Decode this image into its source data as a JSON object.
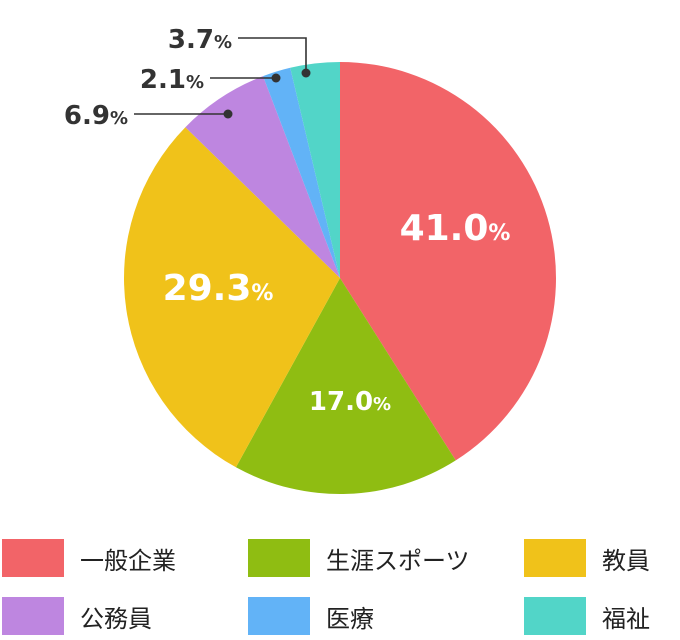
{
  "chart_data": {
    "type": "pie",
    "slices": [
      {
        "name": "一般企業",
        "value": 41.0,
        "label": "41.0",
        "color": "#f26468"
      },
      {
        "name": "生涯スポーツ",
        "value": 17.0,
        "label": "17.0",
        "color": "#8fbd12"
      },
      {
        "name": "教員",
        "value": 29.3,
        "label": "29.3",
        "color": "#f0c21a"
      },
      {
        "name": "公務員",
        "value": 6.9,
        "label": "6.9",
        "color": "#be86e0"
      },
      {
        "name": "医療",
        "value": 2.1,
        "label": "2.1",
        "color": "#62b3f7"
      },
      {
        "name": "福祉",
        "value": 3.7,
        "label": "3.7",
        "color": "#52d5c8"
      }
    ],
    "unit": "%",
    "legend_position": "bottom"
  }
}
